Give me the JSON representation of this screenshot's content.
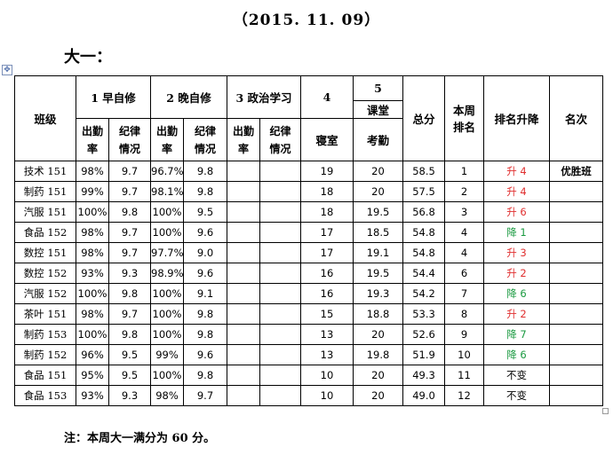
{
  "date": "（2015. 11. 09）",
  "section_title": "大一：",
  "headers": {
    "class": "班级",
    "morning": "1 早自修",
    "evening": "2 晚自修",
    "politics": "3 政治学习",
    "dorm_num": "4",
    "dorm": "寝室",
    "course_num": "5",
    "course": "课堂",
    "course_sub": "考勤",
    "total": "总分",
    "week_rank": "本周排名",
    "rank_change": "排名升降",
    "place": "名次",
    "attendance_a": "出勤",
    "attendance_b": "率",
    "discipline_a": "纪律",
    "discipline_b": "情况"
  },
  "rows": [
    {
      "class": "技术 151",
      "m_att": "98%",
      "m_dis": "9.7",
      "e_att": "96.7%",
      "e_dis": "9.8",
      "p_att": "",
      "p_dis": "",
      "dorm": "19",
      "course": "20",
      "total": "58.5",
      "rank": "1",
      "change": "升 4",
      "change_type": "up",
      "place": "优胜班"
    },
    {
      "class": "制药 151",
      "m_att": "99%",
      "m_dis": "9.7",
      "e_att": "98.1%",
      "e_dis": "9.8",
      "p_att": "",
      "p_dis": "",
      "dorm": "18",
      "course": "20",
      "total": "57.5",
      "rank": "2",
      "change": "升 4",
      "change_type": "up",
      "place": ""
    },
    {
      "class": "汽服 151",
      "m_att": "100%",
      "m_dis": "9.8",
      "e_att": "100%",
      "e_dis": "9.5",
      "p_att": "",
      "p_dis": "",
      "dorm": "18",
      "course": "19.5",
      "total": "56.8",
      "rank": "3",
      "change": "升 6",
      "change_type": "up",
      "place": ""
    },
    {
      "class": "食品 152",
      "m_att": "98%",
      "m_dis": "9.7",
      "e_att": "100%",
      "e_dis": "9.6",
      "p_att": "",
      "p_dis": "",
      "dorm": "17",
      "course": "18.5",
      "total": "54.8",
      "rank": "4",
      "change": "降 1",
      "change_type": "down",
      "place": ""
    },
    {
      "class": "数控 151",
      "m_att": "98%",
      "m_dis": "9.7",
      "e_att": "97.7%",
      "e_dis": "9.0",
      "p_att": "",
      "p_dis": "",
      "dorm": "17",
      "course": "19.1",
      "total": "54.8",
      "rank": "4",
      "change": "升 3",
      "change_type": "up",
      "place": ""
    },
    {
      "class": "数控 152",
      "m_att": "93%",
      "m_dis": "9.3",
      "e_att": "98.9%",
      "e_dis": "9.6",
      "p_att": "",
      "p_dis": "",
      "dorm": "16",
      "course": "19.5",
      "total": "54.4",
      "rank": "6",
      "change": "升 2",
      "change_type": "up",
      "place": ""
    },
    {
      "class": "汽服 152",
      "m_att": "100%",
      "m_dis": "9.8",
      "e_att": "100%",
      "e_dis": "9.1",
      "p_att": "",
      "p_dis": "",
      "dorm": "16",
      "course": "19.3",
      "total": "54.2",
      "rank": "7",
      "change": "降 6",
      "change_type": "down",
      "place": ""
    },
    {
      "class": "茶叶 151",
      "m_att": "98%",
      "m_dis": "9.7",
      "e_att": "100%",
      "e_dis": "9.8",
      "p_att": "",
      "p_dis": "",
      "dorm": "15",
      "course": "18.8",
      "total": "53.3",
      "rank": "8",
      "change": "升 2",
      "change_type": "up",
      "place": ""
    },
    {
      "class": "制药 153",
      "m_att": "100%",
      "m_dis": "9.8",
      "e_att": "100%",
      "e_dis": "9.8",
      "p_att": "",
      "p_dis": "",
      "dorm": "13",
      "course": "20",
      "total": "52.6",
      "rank": "9",
      "change": "降 7",
      "change_type": "down",
      "place": ""
    },
    {
      "class": "制药 152",
      "m_att": "96%",
      "m_dis": "9.5",
      "e_att": "99%",
      "e_dis": "9.6",
      "p_att": "",
      "p_dis": "",
      "dorm": "13",
      "course": "19.8",
      "total": "51.9",
      "rank": "10",
      "change": "降 6",
      "change_type": "down",
      "place": ""
    },
    {
      "class": "食品 151",
      "m_att": "95%",
      "m_dis": "9.5",
      "e_att": "100%",
      "e_dis": "9.8",
      "p_att": "",
      "p_dis": "",
      "dorm": "10",
      "course": "20",
      "total": "49.3",
      "rank": "11",
      "change": "不变",
      "change_type": "same",
      "place": ""
    },
    {
      "class": "食品 153",
      "m_att": "93%",
      "m_dis": "9.3",
      "e_att": "98%",
      "e_dis": "9.7",
      "p_att": "",
      "p_dis": "",
      "dorm": "10",
      "course": "20",
      "total": "49.0",
      "rank": "12",
      "change": "不变",
      "change_type": "same",
      "place": ""
    }
  ],
  "note": "注：本周大一满分为 60 分。"
}
